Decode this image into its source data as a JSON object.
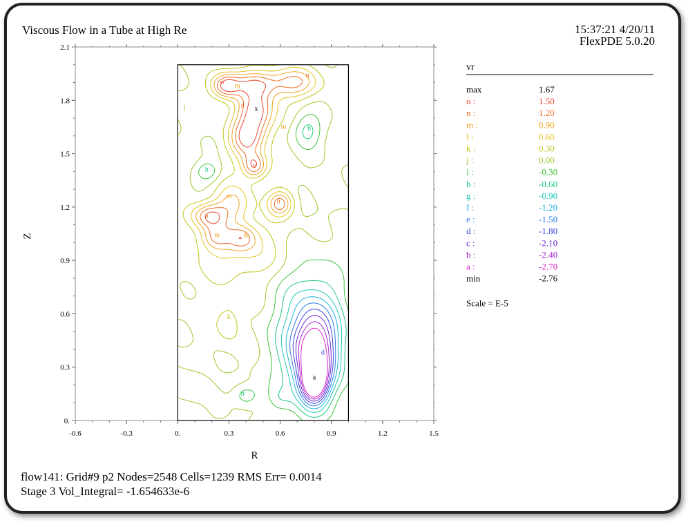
{
  "header": {
    "title": "Viscous Flow in a Tube at High Re",
    "time": "15:37:21 4/20/11",
    "software": "FlexPDE 5.0.20"
  },
  "footer": {
    "line1": "flow141:  Grid#9  p2  Nodes=2548 Cells=1239 RMS Err= 0.0014",
    "line2": "Stage 3  Vol_Integral= -1.654633e-6"
  },
  "legend": {
    "variable": "vr",
    "max_label": "max",
    "max_value": "1.67",
    "min_label": "min",
    "min_value": "-2.76",
    "scale": "Scale = E-5",
    "levels": [
      {
        "key": "o :",
        "value": "1.50",
        "color": "#e8442c"
      },
      {
        "key": "n :",
        "value": "1.20",
        "color": "#ee6a22"
      },
      {
        "key": "m :",
        "value": "0.90",
        "color": "#f0a21e"
      },
      {
        "key": "l :",
        "value": "0.60",
        "color": "#e2c21a"
      },
      {
        "key": "k :",
        "value": "0.30",
        "color": "#bfc414"
      },
      {
        "key": "j :",
        "value": "0.00",
        "color": "#98c828"
      },
      {
        "key": "i :",
        "value": "-0.30",
        "color": "#3cc23c"
      },
      {
        "key": "h :",
        "value": "-0.60",
        "color": "#1ec87a"
      },
      {
        "key": "g :",
        "value": "-0.90",
        "color": "#1cc6b2"
      },
      {
        "key": "f :",
        "value": "-1.20",
        "color": "#1ab0e0"
      },
      {
        "key": "e :",
        "value": "-1.50",
        "color": "#2a7ae8"
      },
      {
        "key": "d :",
        "value": "-1.80",
        "color": "#3a46e0"
      },
      {
        "key": "c :",
        "value": "-2.10",
        "color": "#6a2ad6"
      },
      {
        "key": "b :",
        "value": "-2.40",
        "color": "#a424d0"
      },
      {
        "key": "a :",
        "value": "-2.70",
        "color": "#dc24c8"
      }
    ]
  },
  "chart_data": {
    "type": "contour",
    "xlabel": "R",
    "ylabel": "Z",
    "xlim": [
      -0.6,
      1.5
    ],
    "ylim": [
      0.0,
      2.1
    ],
    "xticks": [
      "-0.6",
      "-0.3",
      "0.",
      "0.3",
      "0.6",
      "0.9",
      "1.2",
      "1.5"
    ],
    "yticks": [
      "0.",
      "0.3",
      "0.6",
      "0.9",
      "1.2",
      "1.5",
      "1.8",
      "2.1"
    ],
    "domain": {
      "r": [
        0.0,
        1.0
      ],
      "z": [
        0.0,
        2.0
      ]
    },
    "features": [
      {
        "label": "o",
        "r": 0.46,
        "z": 1.74,
        "kind": "max-marker",
        "text": "x"
      },
      {
        "label": "o",
        "r": 0.45,
        "z": 1.42
      },
      {
        "label": "o",
        "r": 0.26,
        "z": 1.89
      },
      {
        "label": "n",
        "r": 0.76,
        "z": 1.93
      },
      {
        "label": "n",
        "r": 0.59,
        "z": 1.22
      },
      {
        "label": "n",
        "r": 0.38,
        "z": 1.76
      },
      {
        "label": "n",
        "r": 0.17,
        "z": 1.14
      },
      {
        "label": "m",
        "r": 0.35,
        "z": 1.87
      },
      {
        "label": "m",
        "r": 0.62,
        "z": 1.64
      },
      {
        "label": "m",
        "r": 0.3,
        "z": 1.25
      },
      {
        "label": "m",
        "r": 0.23,
        "z": 1.03
      },
      {
        "label": "m",
        "r": 0.4,
        "z": 1.03
      },
      {
        "label": "h",
        "r": 0.77,
        "z": 1.63
      },
      {
        "label": "h",
        "r": 0.17,
        "z": 1.4
      },
      {
        "label": "h",
        "r": 0.38,
        "z": 0.14
      },
      {
        "label": "d",
        "r": 0.85,
        "z": 0.37
      },
      {
        "label": "a",
        "r": 0.8,
        "z": 0.23,
        "kind": "min-marker",
        "text": "a"
      },
      {
        "label": "k",
        "r": 0.3,
        "z": 0.57
      },
      {
        "label": "j",
        "r": 0.04,
        "z": 1.75
      }
    ]
  }
}
